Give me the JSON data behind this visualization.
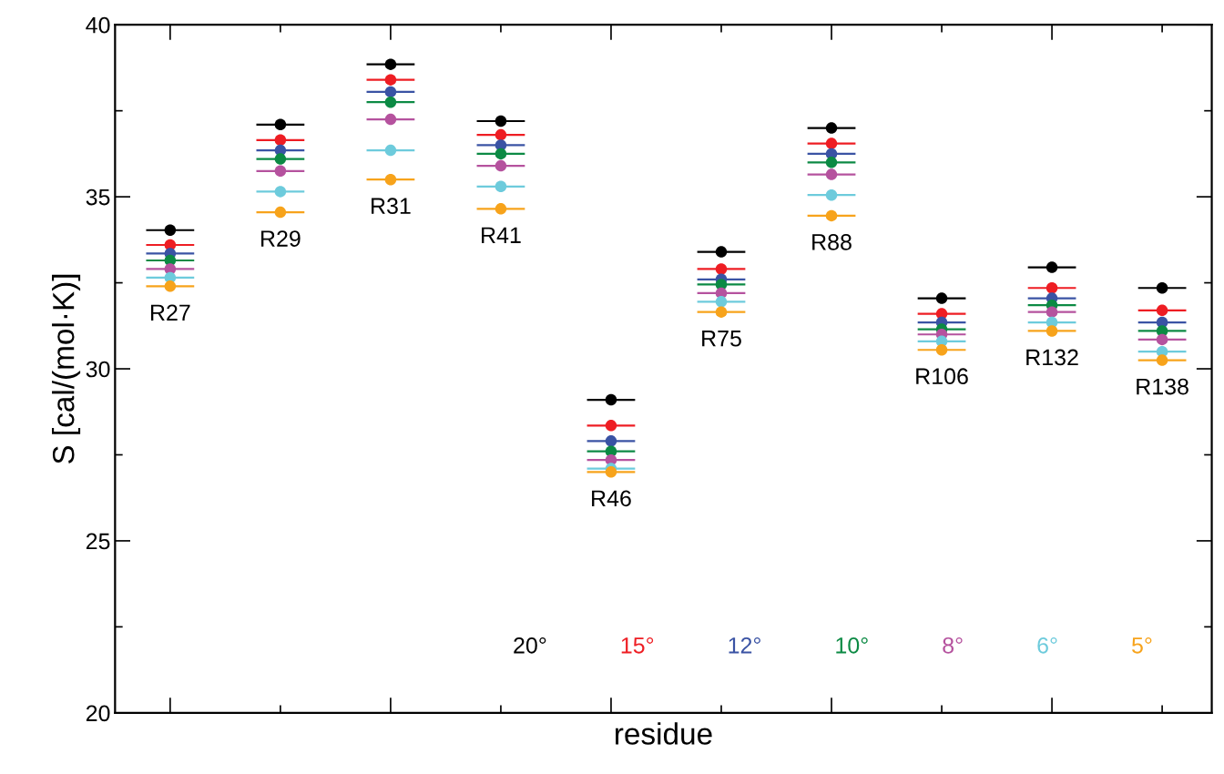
{
  "chart_data": {
    "type": "scatter",
    "xlabel": "residue",
    "ylabel": "S [cal/(mol·K)]",
    "categories": [
      "R27",
      "R29",
      "R31",
      "R41",
      "R46",
      "R75",
      "R88",
      "R106",
      "R132",
      "R138"
    ],
    "series": [
      {
        "name": "20°",
        "color": "#000000",
        "values": [
          34.03,
          37.1,
          38.85,
          37.2,
          29.1,
          33.4,
          37.0,
          32.05,
          32.95,
          32.35
        ]
      },
      {
        "name": "15°",
        "color": "#ee1d23",
        "values": [
          33.6,
          36.65,
          38.4,
          36.8,
          28.35,
          32.9,
          36.55,
          31.6,
          32.35,
          31.7
        ]
      },
      {
        "name": "12°",
        "color": "#3a53a4",
        "values": [
          33.35,
          36.35,
          38.05,
          36.5,
          27.9,
          32.6,
          36.25,
          31.35,
          32.05,
          31.35
        ]
      },
      {
        "name": "10°",
        "color": "#0c8a44",
        "values": [
          33.15,
          36.1,
          37.75,
          36.25,
          27.6,
          32.45,
          36.0,
          31.15,
          31.85,
          31.1
        ]
      },
      {
        "name": "8°",
        "color": "#b5529e",
        "values": [
          32.9,
          35.75,
          37.25,
          35.9,
          27.35,
          32.2,
          35.65,
          31.0,
          31.65,
          30.85
        ]
      },
      {
        "name": "6°",
        "color": "#6dcbdc",
        "values": [
          32.65,
          35.15,
          36.35,
          35.3,
          27.1,
          31.95,
          35.05,
          30.8,
          31.35,
          30.5
        ]
      },
      {
        "name": "5°",
        "color": "#f7a31b",
        "values": [
          32.4,
          34.55,
          35.5,
          34.65,
          27.0,
          31.65,
          34.45,
          30.55,
          31.1,
          30.25
        ]
      }
    ],
    "ylim": [
      20,
      40
    ],
    "yticks": [
      20,
      {
        "value": 22.5,
        "label": null
      },
      25,
      {
        "value": 27.5,
        "label": null
      },
      30,
      {
        "value": 32.5,
        "label": null
      },
      35,
      {
        "value": 37.5,
        "label": null
      },
      40
    ],
    "marker": "circle",
    "grid": false,
    "legend": "bottom right"
  }
}
